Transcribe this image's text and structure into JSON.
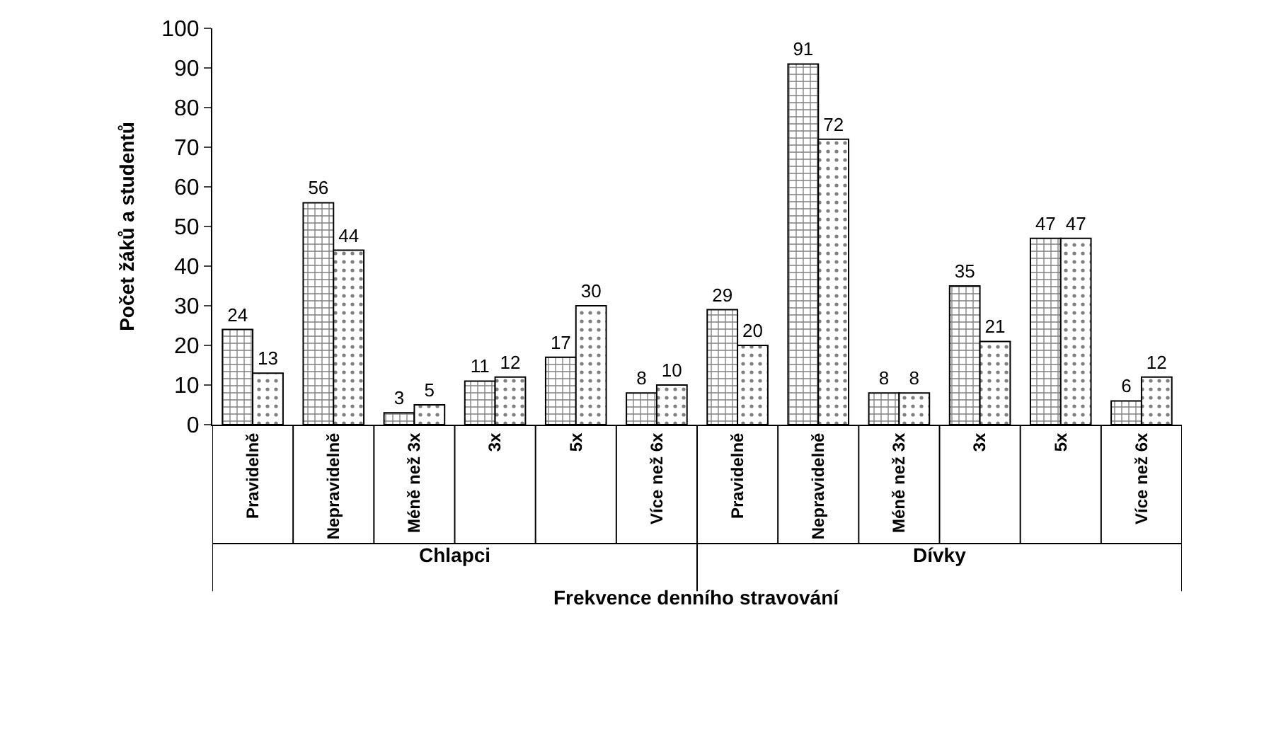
{
  "chart_data": {
    "type": "bar",
    "categories": [
      "Pravidelně",
      "Nepravidelně",
      "Méně než 3x",
      "3x",
      "5x",
      "Více než 6x",
      "Pravidelně",
      "Nepravidelně",
      "Méně než 3x",
      "3x",
      "5x",
      "Více než 6x"
    ],
    "series": [
      {
        "color": "#000000",
        "values": [
          24,
          56,
          3,
          11,
          17,
          8,
          29,
          91,
          8,
          35,
          47,
          6
        ]
      },
      {
        "color": "#000000",
        "values": [
          13,
          44,
          5,
          12,
          30,
          10,
          20,
          72,
          8,
          21,
          47,
          12
        ]
      }
    ],
    "xlabel": "Frekvence denního stravování",
    "ylabel": "Počet žáků a studentů",
    "annotations": [
      "Chlapci",
      "Dívky"
    ],
    "ylim": [
      0,
      100
    ],
    "yticks": [
      0,
      10,
      20,
      30,
      40,
      50,
      60,
      70,
      80,
      90,
      100
    ],
    "data_labels": true
  }
}
